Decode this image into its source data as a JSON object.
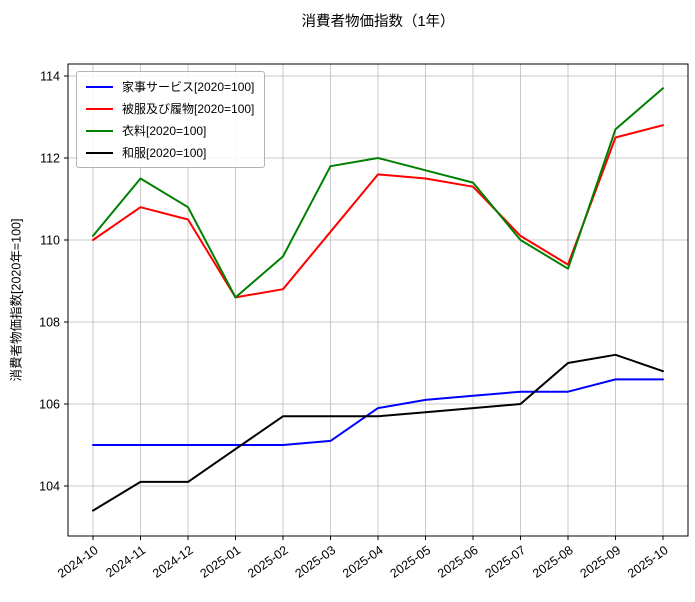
{
  "figure": {
    "background": "#ffffff",
    "grid_color": "#c9c9c9",
    "spine_color": "#000000"
  },
  "chart_data": {
    "type": "line",
    "title": "消費者物価指数（1年）",
    "xlabel": "",
    "ylabel": "消費者物価指数[2020年=100]",
    "categories": [
      "2024-10",
      "2024-11",
      "2024-12",
      "2025-01",
      "2025-02",
      "2025-03",
      "2025-04",
      "2025-05",
      "2025-06",
      "2025-07",
      "2025-08",
      "2025-09",
      "2025-10"
    ],
    "series": [
      {
        "name": "家事サービス[2020=100]",
        "key": "housework-service",
        "color": "#0000ff",
        "values": [
          105.0,
          105.0,
          105.0,
          105.0,
          105.0,
          105.1,
          105.9,
          106.1,
          106.2,
          106.3,
          106.3,
          106.6,
          106.6
        ]
      },
      {
        "name": "被服及び履物[2020=100]",
        "key": "clothes-and-footwear",
        "color": "#ff0000",
        "values": [
          110.0,
          110.8,
          110.5,
          108.6,
          108.8,
          110.2,
          111.6,
          111.5,
          111.3,
          110.1,
          109.4,
          112.5,
          112.8
        ]
      },
      {
        "name": "衣料[2020=100]",
        "key": "clothing",
        "color": "#008000",
        "values": [
          110.1,
          111.5,
          110.8,
          108.6,
          109.6,
          111.8,
          112.0,
          111.7,
          111.4,
          110.0,
          109.3,
          112.7,
          113.7
        ]
      },
      {
        "name": "和服[2020=100]",
        "key": "kimono",
        "color": "#000000",
        "values": [
          103.4,
          104.1,
          104.1,
          104.9,
          105.7,
          105.7,
          105.7,
          105.8,
          105.9,
          106.0,
          107.0,
          107.2,
          106.8
        ]
      }
    ],
    "yticks": [
      104,
      106,
      108,
      110,
      112,
      114
    ],
    "ylim": [
      102.8,
      114.3
    ],
    "grid": true,
    "legend_position": "upper left"
  }
}
